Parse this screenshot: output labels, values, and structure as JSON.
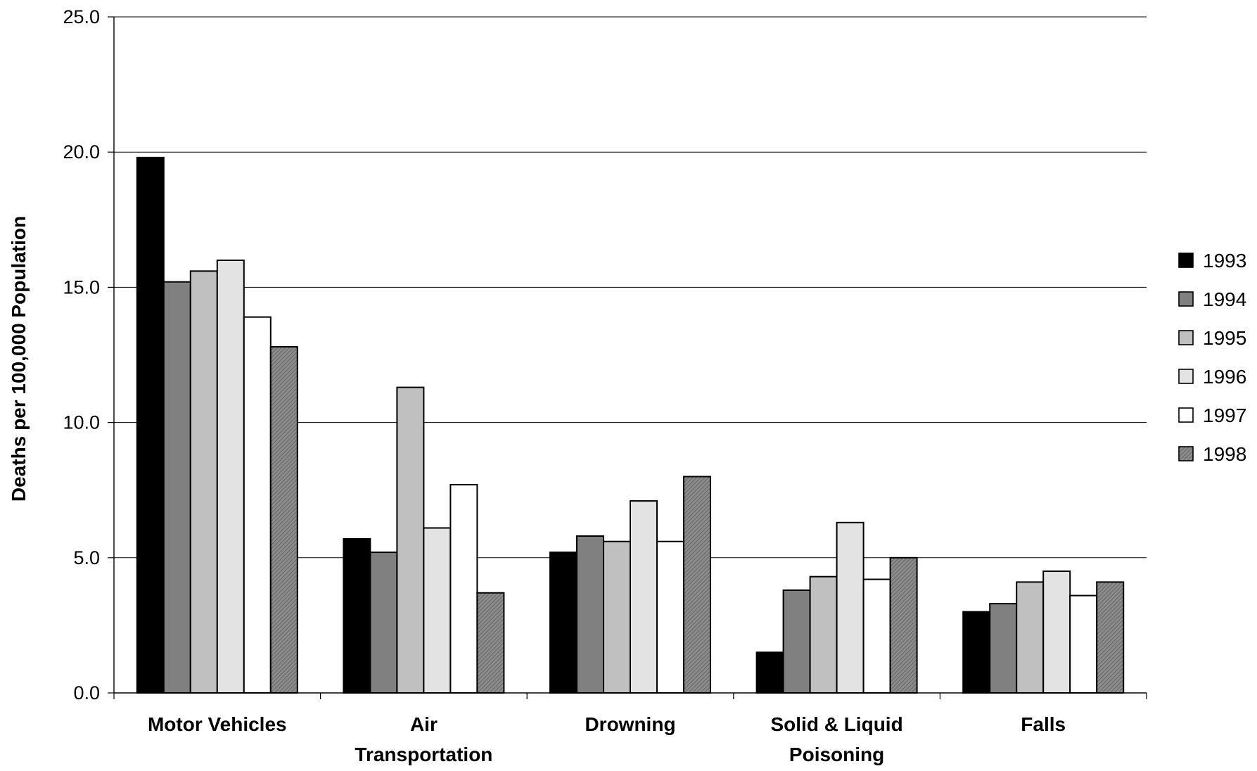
{
  "chart_data": {
    "type": "bar",
    "title": "",
    "xlabel": "",
    "ylabel": "Deaths per 100,000 Population",
    "ylim": [
      0,
      25
    ],
    "yticks": [
      "0.0",
      "5.0",
      "10.0",
      "15.0",
      "20.0",
      "25.0"
    ],
    "grid": true,
    "legend_position": "right",
    "categories": [
      [
        "Motor Vehicles"
      ],
      [
        "Air",
        "Transportation"
      ],
      [
        "Drowning"
      ],
      [
        "Solid & Liquid",
        "Poisoning"
      ],
      [
        "Falls"
      ]
    ],
    "series": [
      {
        "name": "1993",
        "color": "#000000",
        "pattern": "solid",
        "values": [
          19.8,
          5.7,
          5.2,
          1.5,
          3.0
        ]
      },
      {
        "name": "1994",
        "color": "#808080",
        "pattern": "solid",
        "values": [
          15.2,
          5.2,
          5.8,
          3.8,
          3.3
        ]
      },
      {
        "name": "1995",
        "color": "#c0c0c0",
        "pattern": "solid",
        "values": [
          15.6,
          11.3,
          5.6,
          4.3,
          4.1
        ]
      },
      {
        "name": "1996",
        "color": "#e3e3e3",
        "pattern": "solid",
        "values": [
          16.0,
          6.1,
          7.1,
          6.3,
          4.5
        ]
      },
      {
        "name": "1997",
        "color": "#ffffff",
        "pattern": "solid",
        "values": [
          13.9,
          7.7,
          5.6,
          4.2,
          3.6
        ]
      },
      {
        "name": "1998",
        "color": "#8c8c8c",
        "pattern": "hatched",
        "values": [
          12.8,
          3.7,
          8.0,
          5.0,
          4.1
        ]
      }
    ]
  }
}
